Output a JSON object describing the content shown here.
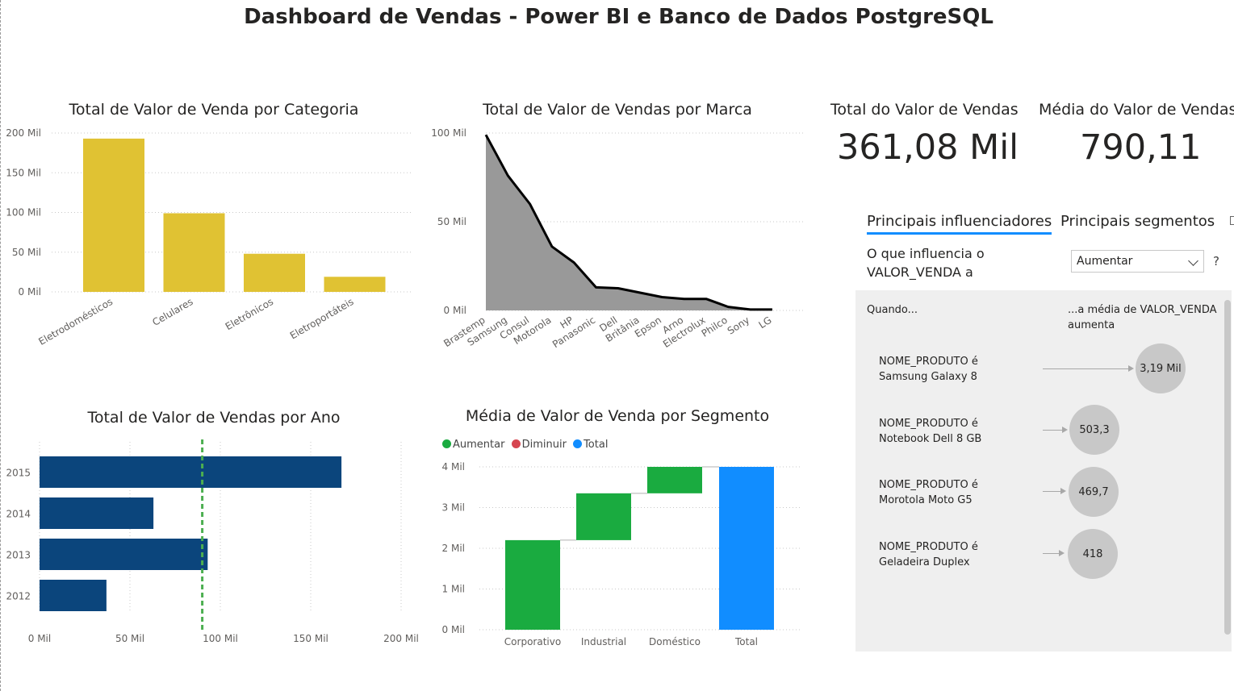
{
  "page": {
    "title": "Dashboard de Vendas - Power BI e Banco de Dados PostgreSQL"
  },
  "chart_data": [
    {
      "id": "categoria",
      "type": "bar",
      "title": "Total de Valor de Venda por Categoria",
      "categories": [
        "Eletrodomésticos",
        "Celulares",
        "Eletrônicos",
        "Eletroportáteis"
      ],
      "values": [
        193000,
        99000,
        48000,
        19000
      ],
      "ylim": [
        0,
        200000
      ],
      "yticks": [
        "0 Mil",
        "50 Mil",
        "100 Mil",
        "150 Mil",
        "200 Mil"
      ],
      "ytick_values": [
        0,
        50000,
        100000,
        150000,
        200000
      ],
      "color": "#E0C233",
      "grid": true
    },
    {
      "id": "marca",
      "type": "area",
      "title": "Total de Valor de Vendas por Marca",
      "categories": [
        "Brastemp",
        "Samsung",
        "Consul",
        "Motorola",
        "HP",
        "Panasonic",
        "Dell",
        "Britânia",
        "Epson",
        "Arno",
        "Electrolux",
        "Philco",
        "Sony",
        "LG"
      ],
      "values": [
        99000,
        76000,
        60000,
        36000,
        27000,
        13000,
        12500,
        10000,
        7500,
        6500,
        6500,
        2000,
        500,
        500
      ],
      "ylim": [
        0,
        100000
      ],
      "yticks": [
        "0 Mil",
        "50 Mil",
        "100 Mil"
      ],
      "ytick_values": [
        0,
        50000,
        100000
      ],
      "fill": "#999999",
      "line": "#000000",
      "grid": true
    },
    {
      "id": "ano",
      "type": "bar",
      "orientation": "horizontal",
      "title": "Total de Valor de Vendas por Ano",
      "categories": [
        "2015",
        "2014",
        "2013",
        "2012"
      ],
      "values": [
        167000,
        63000,
        93000,
        37000
      ],
      "xlim": [
        0,
        200000
      ],
      "xticks": [
        "0 Mil",
        "50 Mil",
        "100 Mil",
        "150 Mil",
        "200 Mil"
      ],
      "xtick_values": [
        0,
        50000,
        100000,
        150000,
        200000
      ],
      "reference_line": 90000,
      "color": "#0B457C",
      "reference_color": "#4CAF50",
      "grid": true
    },
    {
      "id": "segmento",
      "type": "waterfall",
      "title": "Média de Valor de Venda por Segmento",
      "legend": [
        {
          "label": "Aumentar",
          "color": "#1AAB40"
        },
        {
          "label": "Diminuir",
          "color": "#D64550"
        },
        {
          "label": "Total",
          "color": "#118DFF"
        }
      ],
      "categories": [
        "Corporativo",
        "Industrial",
        "Doméstico",
        "Total"
      ],
      "values": [
        2200,
        1150,
        650,
        4000
      ],
      "kinds": [
        "increase",
        "increase",
        "increase",
        "total"
      ],
      "ylim": [
        0,
        4000
      ],
      "yticks": [
        "0 Mil",
        "1 Mil",
        "2 Mil",
        "3 Mil",
        "4 Mil"
      ],
      "ytick_values": [
        0,
        1000,
        2000,
        3000,
        4000
      ],
      "grid": true
    }
  ],
  "cards": [
    {
      "label": "Total do Valor de Vendas",
      "value": "361,08 Mil"
    },
    {
      "label": "Média do Valor de Vendas",
      "value": "790,11"
    }
  ],
  "key_influencers": {
    "tabs": [
      {
        "label": "Principais influenciadores",
        "active": true
      },
      {
        "label": "Principais segmentos",
        "active": false
      }
    ],
    "question_line1": "O que influencia o",
    "question_line2": "VALOR_VENDA a",
    "select_value": "Aumentar",
    "help": "?",
    "header_left": "Quando...",
    "header_right_line1": "...a média de VALOR_VENDA",
    "header_right_line2": "aumenta",
    "items": [
      {
        "line1": "NOME_PRODUTO é",
        "line2": "Samsung Galaxy 8",
        "value": "3,19 Mil"
      },
      {
        "line1": "NOME_PRODUTO é",
        "line2": "Notebook Dell 8 GB",
        "value": "503,3"
      },
      {
        "line1": "NOME_PRODUTO é",
        "line2": "Morotola Moto G5",
        "value": "469,7"
      },
      {
        "line1": "NOME_PRODUTO é",
        "line2": "Geladeira Duplex",
        "value": "418"
      }
    ]
  }
}
